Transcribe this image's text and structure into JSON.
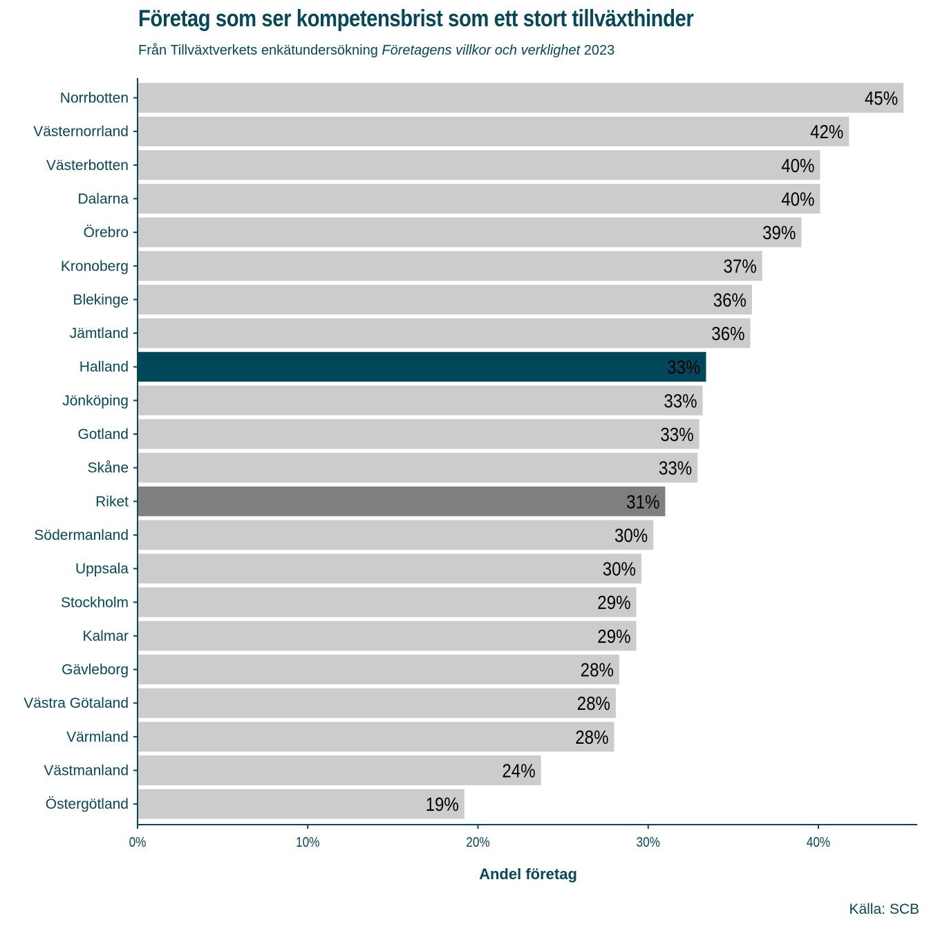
{
  "chart_data": {
    "type": "bar",
    "orientation": "horizontal",
    "title": "Företag som ser kompetensbrist som ett stort tillväxthinder",
    "subtitle": {
      "prefix": "Från Tillväxtverkets enkätundersökning ",
      "italic": "Företagens villkor och verklighet",
      "suffix": " 2023"
    },
    "xlabel": "Andel företag",
    "ylabel": "",
    "caption": "Källa: SCB",
    "xlim": [
      0,
      45.8
    ],
    "xticks": [
      0,
      10,
      20,
      30,
      40
    ],
    "xtick_labels": [
      "0%",
      "10%",
      "20%",
      "30%",
      "40%"
    ],
    "grid": false,
    "categories": [
      "Norrbotten",
      "Västernorrland",
      "Västerbotten",
      "Dalarna",
      "Örebro",
      "Kronoberg",
      "Blekinge",
      "Jämtland",
      "Halland",
      "Jönköping",
      "Gotland",
      "Skåne",
      "Riket",
      "Södermanland",
      "Uppsala",
      "Stockholm",
      "Kalmar",
      "Gävleborg",
      "Västra Götaland",
      "Värmland",
      "Västmanland",
      "Östergötland"
    ],
    "values": [
      45.0,
      41.8,
      40.1,
      40.1,
      39.0,
      36.7,
      36.1,
      36.0,
      33.4,
      33.2,
      33.0,
      32.9,
      31.0,
      30.3,
      29.6,
      29.3,
      29.3,
      28.3,
      28.1,
      28.0,
      23.7,
      19.2
    ],
    "labels": [
      "45%",
      "42%",
      "40%",
      "40%",
      "39%",
      "37%",
      "36%",
      "36%",
      "33%",
      "33%",
      "33%",
      "33%",
      "31%",
      "30%",
      "30%",
      "29%",
      "29%",
      "28%",
      "28%",
      "28%",
      "24%",
      "19%"
    ],
    "highlight": {
      "Halland": "#00475a",
      "Riket": "#7f7f7f"
    },
    "colors": {
      "default_bar": "#cccccc",
      "highlight_label": "#ffffff",
      "default_label": "#000000",
      "axis": "#06485a",
      "text": "#06485a"
    }
  }
}
